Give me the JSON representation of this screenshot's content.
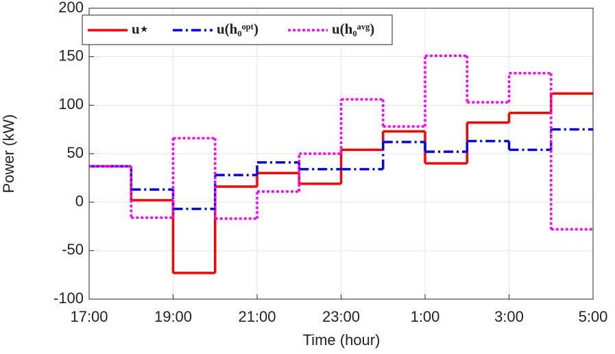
{
  "chart_data": {
    "type": "step",
    "xlabel": "Time (hour)",
    "ylabel": "Power (kW)",
    "x": [
      17,
      18,
      19,
      20,
      21,
      22,
      23,
      24,
      25,
      26,
      27,
      28
    ],
    "xlim": [
      17,
      29
    ],
    "xticks": [
      {
        "value": 17,
        "label": "17:00"
      },
      {
        "value": 19,
        "label": "19:00"
      },
      {
        "value": 21,
        "label": "21:00"
      },
      {
        "value": 23,
        "label": "23:00"
      },
      {
        "value": 25,
        "label": "1:00"
      },
      {
        "value": 27,
        "label": "3:00"
      },
      {
        "value": 29,
        "label": "5:00"
      }
    ],
    "ylim": [
      -100,
      200
    ],
    "yticks": [
      -100,
      -50,
      0,
      50,
      100,
      150,
      200
    ],
    "grid": true,
    "legend": "top-left",
    "series": [
      {
        "name": "u⋆",
        "color": "#ff0000",
        "linestyle": "solid",
        "values": [
          37,
          2,
          -73,
          16,
          30,
          19,
          54,
          73,
          40,
          82,
          92,
          112
        ]
      },
      {
        "name": "u(h₀ᵒᵖᵗ)",
        "color": "#0000ff",
        "linestyle": "dashdot",
        "values": [
          37,
          13,
          -7,
          28,
          41,
          34,
          34,
          62,
          52,
          63,
          54,
          75
        ]
      },
      {
        "name": "u(h₀ᵃᵛᵍ)",
        "color": "#ff00ff",
        "linestyle": "dotted",
        "values": [
          37,
          -16,
          66,
          -17,
          11,
          50,
          106,
          78,
          151,
          103,
          133,
          -28
        ]
      }
    ]
  }
}
